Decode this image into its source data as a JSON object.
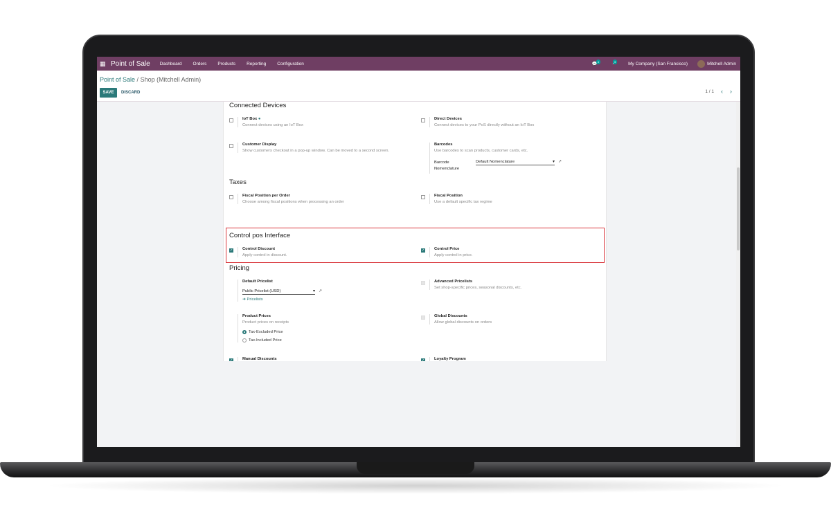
{
  "nav": {
    "app": "Point of Sale",
    "menus": [
      "Dashboard",
      "Orders",
      "Products",
      "Reporting",
      "Configuration"
    ],
    "messages_count": "4",
    "activities_count": "3",
    "company": "My Company (San Francisco)",
    "user": "Mitchell Admin"
  },
  "breadcrumb": {
    "parent": "Point of Sale",
    "current": "Shop (Mitchell Admin)"
  },
  "actions": {
    "save": "SAVE",
    "discard": "DISCARD"
  },
  "pager": {
    "value": "1 / 1"
  },
  "colors": {
    "navbar": "#6f3e63",
    "primary": "#2c7a7a",
    "highlight": "#d9343a"
  },
  "sections": {
    "connected": {
      "title": "Connected Devices",
      "iot": {
        "title": "IoT Box",
        "desc": "Connect devices using an IoT Box",
        "checked": false
      },
      "direct": {
        "title": "Direct Devices",
        "desc": "Connect devices to your PoS directly without an IoT Box",
        "checked": false
      },
      "display": {
        "title": "Customer Display",
        "desc": "Show customers checkout in a pop-up window. Can be moved to a second screen.",
        "checked": false
      },
      "barcodes": {
        "title": "Barcodes",
        "desc": "Use barcodes to scan products, customer cards, etc.",
        "label1": "Barcode",
        "label2": "Nomenclature",
        "value": "Default Nomenclature"
      }
    },
    "taxes": {
      "title": "Taxes",
      "fpo": {
        "title": "Fiscal Position per Order",
        "desc": "Choose among fiscal positions when processing an order",
        "checked": false
      },
      "fp": {
        "title": "Fiscal Position",
        "desc": "Use a default specific tax regime",
        "checked": false
      }
    },
    "control": {
      "title": "Control pos Interface",
      "discount": {
        "title": "Control Discount",
        "desc": "Apply control in discount.",
        "checked": true
      },
      "price": {
        "title": "Control Price",
        "desc": "Apply control in price.",
        "checked": true
      }
    },
    "pricing": {
      "title": "Pricing",
      "default": {
        "title": "Default Pricelist",
        "value": "Public Pricelist (USD)",
        "link": "Pricelists"
      },
      "advanced": {
        "title": "Advanced Pricelists",
        "desc": "Set shop-specific prices, seasonal discounts, etc."
      },
      "prices": {
        "title": "Product Prices",
        "desc": "Product prices on receipts",
        "options": [
          "Tax-Excluded Price",
          "Tax-Included Price"
        ],
        "selected": "Tax-Excluded Price"
      },
      "global": {
        "title": "Global Discounts",
        "desc": "Allow global discounts on orders"
      },
      "manual": {
        "title": "Manual Discounts",
        "checked": true
      },
      "loyalty": {
        "title": "Loyalty Program",
        "checked": true
      }
    }
  }
}
